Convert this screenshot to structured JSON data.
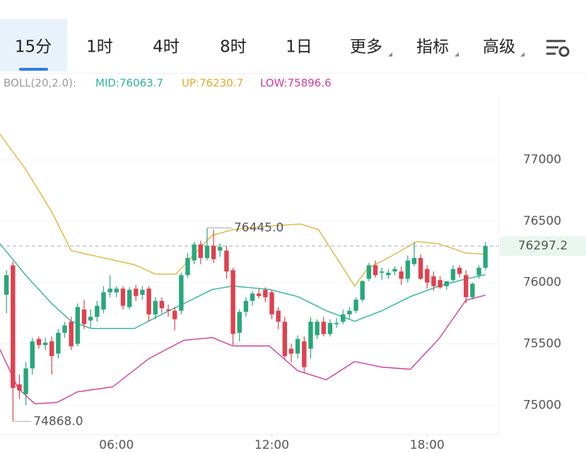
{
  "tabs": [
    "15分",
    "1时",
    "4时",
    "8时",
    "1日",
    "更多",
    "指标",
    "高级"
  ],
  "active_tab": 0,
  "indicator": {
    "name": "BOLL(20,2.0):",
    "mid": "MID:76063.7",
    "up": "UP:76230.7",
    "low": "LOW:75896.6"
  },
  "chart_data": {
    "type": "candlestick",
    "x": [
      1.75,
      2,
      2.25,
      2.5,
      2.75,
      3,
      3.25,
      3.5,
      3.75,
      4,
      4.25,
      4.5,
      4.75,
      5,
      5.25,
      5.5,
      5.75,
      6,
      6.25,
      6.5,
      6.75,
      7,
      7.25,
      7.5,
      7.75,
      8,
      8.25,
      8.5,
      8.75,
      9,
      9.25,
      9.5,
      9.75,
      10,
      10.25,
      10.5,
      10.75,
      11,
      11.25,
      11.5,
      11.75,
      12,
      12.25,
      12.5,
      12.75,
      13,
      13.25,
      13.5,
      13.75,
      14,
      14.25,
      14.5,
      14.75,
      15,
      15.25,
      15.5,
      15.75,
      16,
      16.25,
      16.5,
      16.75,
      17,
      17.25,
      17.5,
      17.75,
      18,
      18.25,
      18.5,
      18.75,
      19,
      19.25,
      19.5,
      19.75,
      20,
      20.25
    ],
    "open": [
      75900,
      76140,
      75170,
      75090,
      75300,
      75540,
      75490,
      75520,
      75420,
      75590,
      75680,
      75500,
      75780,
      75690,
      75720,
      75780,
      75920,
      75920,
      75950,
      75800,
      75950,
      75900,
      75950,
      75740,
      75850,
      75780,
      75770,
      75770,
      76060,
      76180,
      76310,
      76200,
      76300,
      76260,
      76260,
      76100,
      75590,
      75760,
      75850,
      75910,
      75940,
      75920,
      75770,
      75680,
      75460,
      75420,
      75520,
      75460,
      75570,
      75680,
      75580,
      75660,
      75680,
      75740,
      75770,
      75860,
      76030,
      76140,
      76080,
      76060,
      76090,
      76090,
      76030,
      76150,
      76200,
      76110,
      76050,
      76020,
      75970,
      76020,
      76120,
      76060,
      75880,
      76060,
      76120
    ],
    "high": [
      76100,
      76170,
      75250,
      75350,
      75550,
      75560,
      75550,
      75560,
      75620,
      75680,
      75720,
      75830,
      75860,
      75780,
      75850,
      75970,
      76060,
      75970,
      75970,
      75960,
      75980,
      75970,
      75970,
      75880,
      75880,
      75820,
      75800,
      76080,
      76240,
      76330,
      76340,
      76445,
      76430,
      76320,
      76300,
      76120,
      75780,
      75880,
      75930,
      75950,
      75960,
      75940,
      75800,
      75720,
      75500,
      75570,
      75560,
      75720,
      75700,
      75720,
      75700,
      75710,
      75780,
      75800,
      75880,
      76020,
      76160,
      76180,
      76120,
      76110,
      76130,
      76130,
      76220,
      76330,
      76230,
      76140,
      76090,
      76050,
      76010,
      76140,
      76140,
      76100,
      76000,
      76140,
      76330
    ],
    "low": [
      75750,
      74868,
      75050,
      75000,
      75250,
      75460,
      75450,
      75250,
      75380,
      75550,
      75450,
      75480,
      75620,
      75630,
      75680,
      75750,
      75880,
      75880,
      75780,
      75780,
      75850,
      75860,
      75680,
      75700,
      75750,
      75720,
      75610,
      75740,
      76040,
      76150,
      76150,
      76180,
      76160,
      76210,
      76030,
      75490,
      75520,
      75720,
      75810,
      75870,
      75840,
      75700,
      75620,
      75380,
      75350,
      75380,
      75260,
      75380,
      75540,
      75560,
      75560,
      75630,
      75660,
      75700,
      75750,
      75840,
      76010,
      76040,
      76020,
      76030,
      76060,
      75980,
      76000,
      76130,
      76020,
      75950,
      75930,
      75950,
      75940,
      76000,
      76040,
      75830,
      75860,
      76030,
      76100
    ],
    "close": [
      76060,
      75140,
      75120,
      75300,
      75520,
      75490,
      75510,
      75400,
      75590,
      75650,
      75480,
      75800,
      75660,
      75720,
      75810,
      75920,
      75950,
      75950,
      75810,
      75940,
      75890,
      75940,
      75740,
      75850,
      75790,
      75770,
      75700,
      76060,
      76200,
      76310,
      76200,
      76300,
      76190,
      76290,
      76090,
      75580,
      75760,
      75850,
      75910,
      75890,
      75880,
      75740,
      75680,
      75400,
      75420,
      75540,
      75310,
      75680,
      75680,
      75580,
      75670,
      75670,
      75740,
      75770,
      75860,
      76010,
      76140,
      76060,
      76090,
      76080,
      76110,
      76030,
      76180,
      76200,
      76030,
      76000,
      75970,
      75960,
      76010,
      76110,
      76070,
      75880,
      75990,
      76120,
      76297.2
    ],
    "up_color": "#26a87a",
    "down_color": "#e0404f",
    "bands": [
      {
        "name": "UP",
        "color": "#e3b43a",
        "x": [
          1.5,
          2.5,
          3.5,
          4.25,
          5.5,
          6.7,
          7.5,
          8.3,
          9,
          9.7,
          10.5,
          11.9,
          13.1,
          13.8,
          14.5,
          15.2,
          15.7,
          16.5,
          17.6,
          18.45,
          19.5,
          20.25
        ],
        "values": [
          77208,
          76920,
          76575,
          76259,
          76201,
          76144,
          76069,
          76069,
          76230,
          76385,
          76431,
          76460,
          76477,
          76431,
          76201,
          75971,
          76115,
          76201,
          76334,
          76316,
          76240,
          76230.7
        ]
      },
      {
        "name": "MID",
        "color": "#2bb59a",
        "x": [
          1.5,
          2.5,
          3.5,
          4.25,
          5,
          6.7,
          7.75,
          8.6,
          9.7,
          10.5,
          11.9,
          13,
          14.1,
          15.2,
          16.25,
          17.35,
          18.45,
          19.5,
          20.25
        ],
        "values": [
          76316,
          76058,
          75828,
          75684,
          75626,
          75626,
          75741,
          75828,
          75943,
          75971,
          75943,
          75885,
          75770,
          75684,
          75770,
          75885,
          75971,
          76029,
          76063.7
        ]
      },
      {
        "name": "LOW",
        "color": "#d23c9a",
        "x": [
          1.5,
          2.2,
          2.85,
          3.7,
          4.5,
          5.85,
          7.25,
          8.6,
          9.7,
          10.5,
          11.9,
          13,
          14.1,
          15.2,
          16.25,
          17.35,
          18.45,
          19.5,
          20.25
        ],
        "values": [
          75454,
          75138,
          75011,
          75022,
          75109,
          75149,
          75379,
          75529,
          75551,
          75483,
          75483,
          75281,
          75207,
          75356,
          75310,
          75293,
          75540,
          75856,
          75896.6
        ]
      }
    ],
    "xlim": [
      1.5,
      20.75
    ],
    "xticks": [
      {
        "value": 6,
        "label": "06:00"
      },
      {
        "value": 12,
        "label": "12:00"
      },
      {
        "value": 18,
        "label": "18:00"
      }
    ],
    "ylim": [
      74760,
      77525
    ],
    "yticks": [
      75000,
      75500,
      76000,
      76500,
      77000
    ],
    "grid": true,
    "max_marker": {
      "index": 31,
      "value": 76445,
      "label": "76445.0"
    },
    "min_marker": {
      "index": 1,
      "value": 74868,
      "label": "74868.0"
    },
    "last_price": 76297.2
  }
}
